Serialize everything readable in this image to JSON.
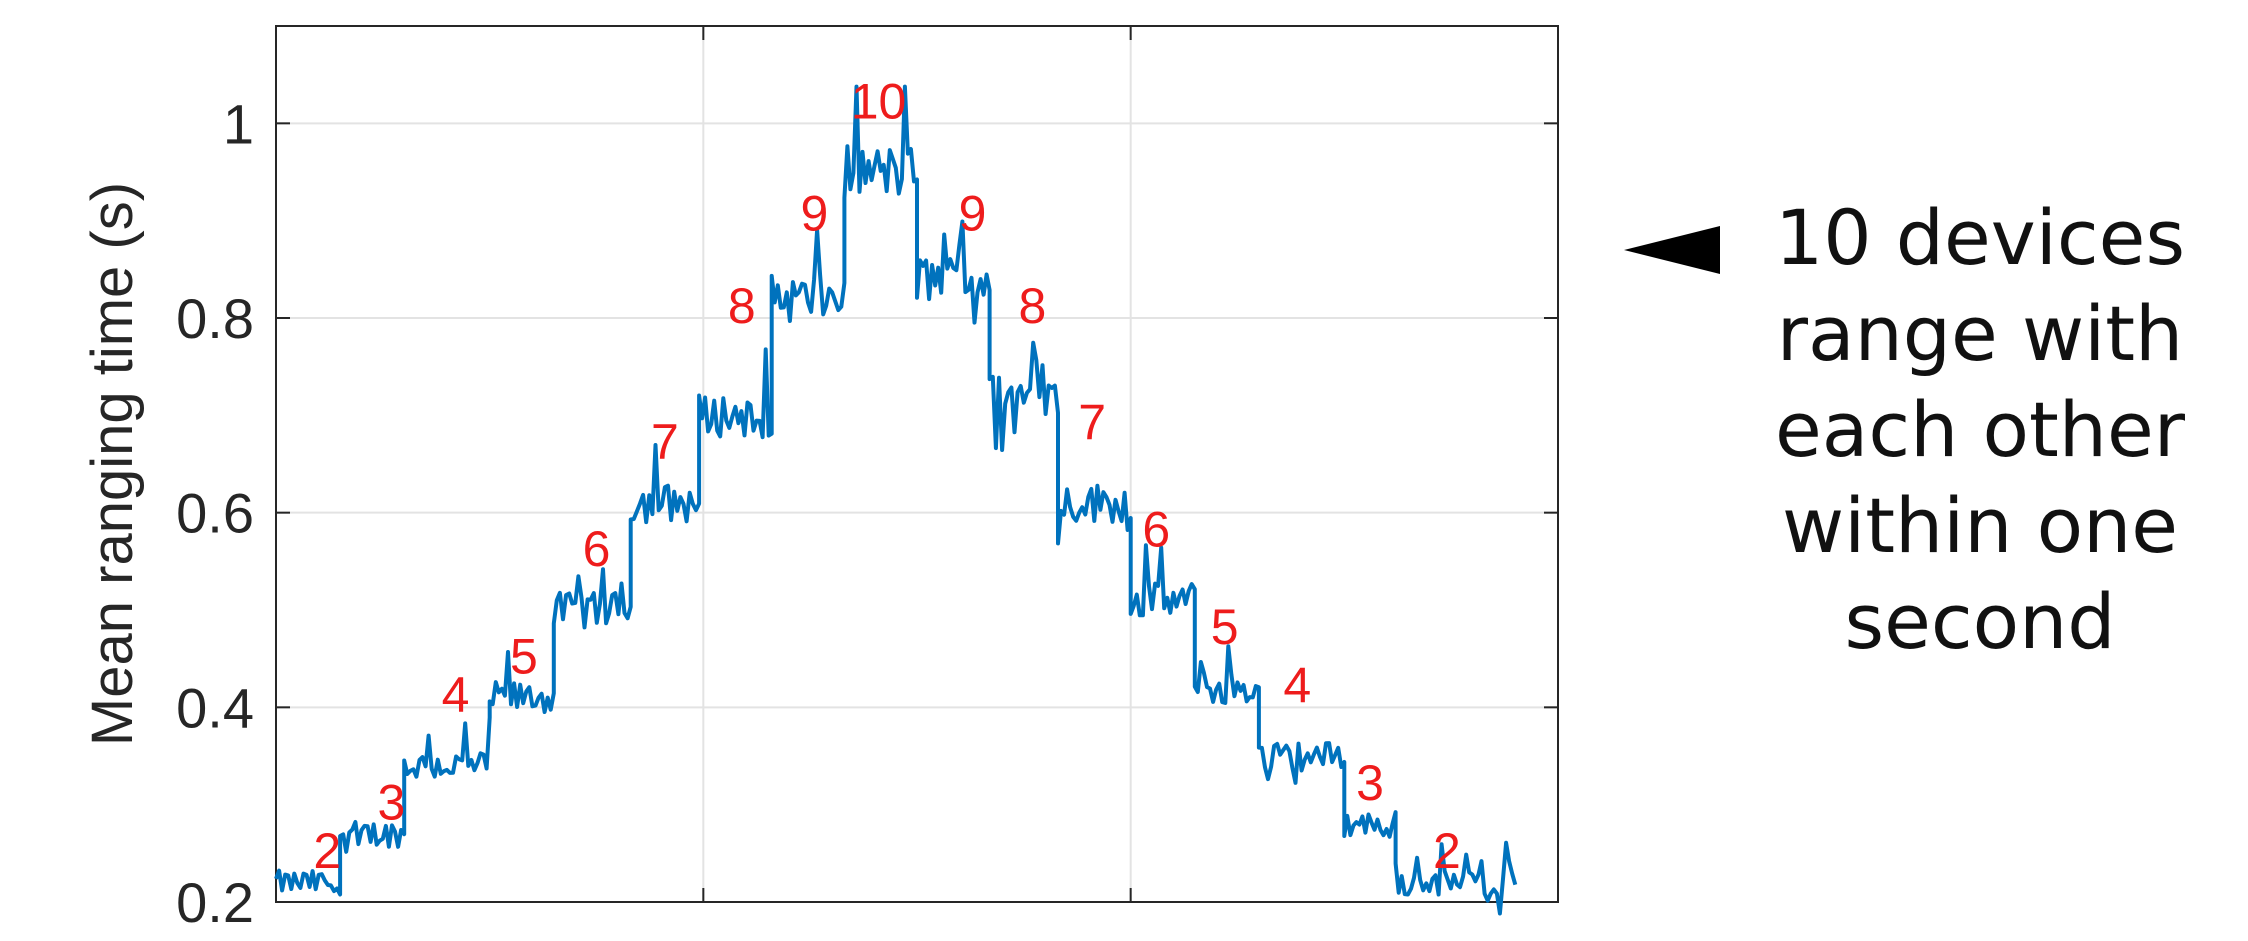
{
  "chart_data": {
    "type": "line",
    "title": "",
    "xlabel": "",
    "ylabel": "Mean ranging time (s)",
    "ylim": [
      0.2,
      1.1
    ],
    "xlim": [
      0,
      3
    ],
    "yticks": [
      "0.2",
      "0.4",
      "0.6",
      "0.8",
      "1"
    ],
    "ytick_values": [
      0.2,
      0.4,
      0.6,
      0.8,
      1.0
    ],
    "xgrid_values": [
      1,
      2
    ],
    "grid": true,
    "line_color": "#0072bd",
    "annotation_color": "#ee1c1c",
    "steps": [
      {
        "x_start": 0.0,
        "x_end": 0.15,
        "y": 0.22
      },
      {
        "x_start": 0.15,
        "x_end": 0.3,
        "y": 0.27
      },
      {
        "x_start": 0.3,
        "x_end": 0.5,
        "y": 0.34
      },
      {
        "x_start": 0.5,
        "x_end": 0.65,
        "y": 0.41
      },
      {
        "x_start": 0.65,
        "x_end": 0.83,
        "y": 0.5
      },
      {
        "x_start": 0.83,
        "x_end": 0.99,
        "y": 0.61
      },
      {
        "x_start": 0.99,
        "x_end": 1.16,
        "y": 0.7
      },
      {
        "x_start": 1.16,
        "x_end": 1.33,
        "y": 0.82
      },
      {
        "x_start": 1.33,
        "x_end": 1.5,
        "y": 0.95
      },
      {
        "x_start": 1.5,
        "x_end": 1.67,
        "y": 0.84
      },
      {
        "x_start": 1.67,
        "x_end": 1.83,
        "y": 0.72
      },
      {
        "x_start": 1.83,
        "x_end": 2.0,
        "y": 0.61
      },
      {
        "x_start": 2.0,
        "x_end": 2.15,
        "y": 0.51
      },
      {
        "x_start": 2.15,
        "x_end": 2.3,
        "y": 0.42
      },
      {
        "x_start": 2.3,
        "x_end": 2.5,
        "y": 0.35
      },
      {
        "x_start": 2.5,
        "x_end": 2.62,
        "y": 0.28
      },
      {
        "x_start": 2.62,
        "x_end": 2.9,
        "y": 0.22
      }
    ],
    "annotations": [
      {
        "text": "2",
        "x": 0.12,
        "y": 0.235
      },
      {
        "text": "3",
        "x": 0.27,
        "y": 0.285
      },
      {
        "text": "4",
        "x": 0.42,
        "y": 0.395
      },
      {
        "text": "5",
        "x": 0.58,
        "y": 0.435
      },
      {
        "text": "6",
        "x": 0.75,
        "y": 0.545
      },
      {
        "text": "7",
        "x": 0.91,
        "y": 0.655
      },
      {
        "text": "8",
        "x": 1.09,
        "y": 0.795
      },
      {
        "text": "9",
        "x": 1.26,
        "y": 0.89
      },
      {
        "text": "10",
        "x": 1.41,
        "y": 1.005
      },
      {
        "text": "9",
        "x": 1.63,
        "y": 0.89
      },
      {
        "text": "8",
        "x": 1.77,
        "y": 0.795
      },
      {
        "text": "7",
        "x": 1.91,
        "y": 0.675
      },
      {
        "text": "6",
        "x": 2.06,
        "y": 0.565
      },
      {
        "text": "5",
        "x": 2.22,
        "y": 0.465
      },
      {
        "text": "4",
        "x": 2.39,
        "y": 0.405
      },
      {
        "text": "3",
        "x": 2.56,
        "y": 0.305
      },
      {
        "text": "2",
        "x": 2.74,
        "y": 0.235
      }
    ]
  },
  "callout": {
    "lines": [
      "10 devices",
      "range with",
      "each other",
      "within one",
      "second"
    ]
  }
}
